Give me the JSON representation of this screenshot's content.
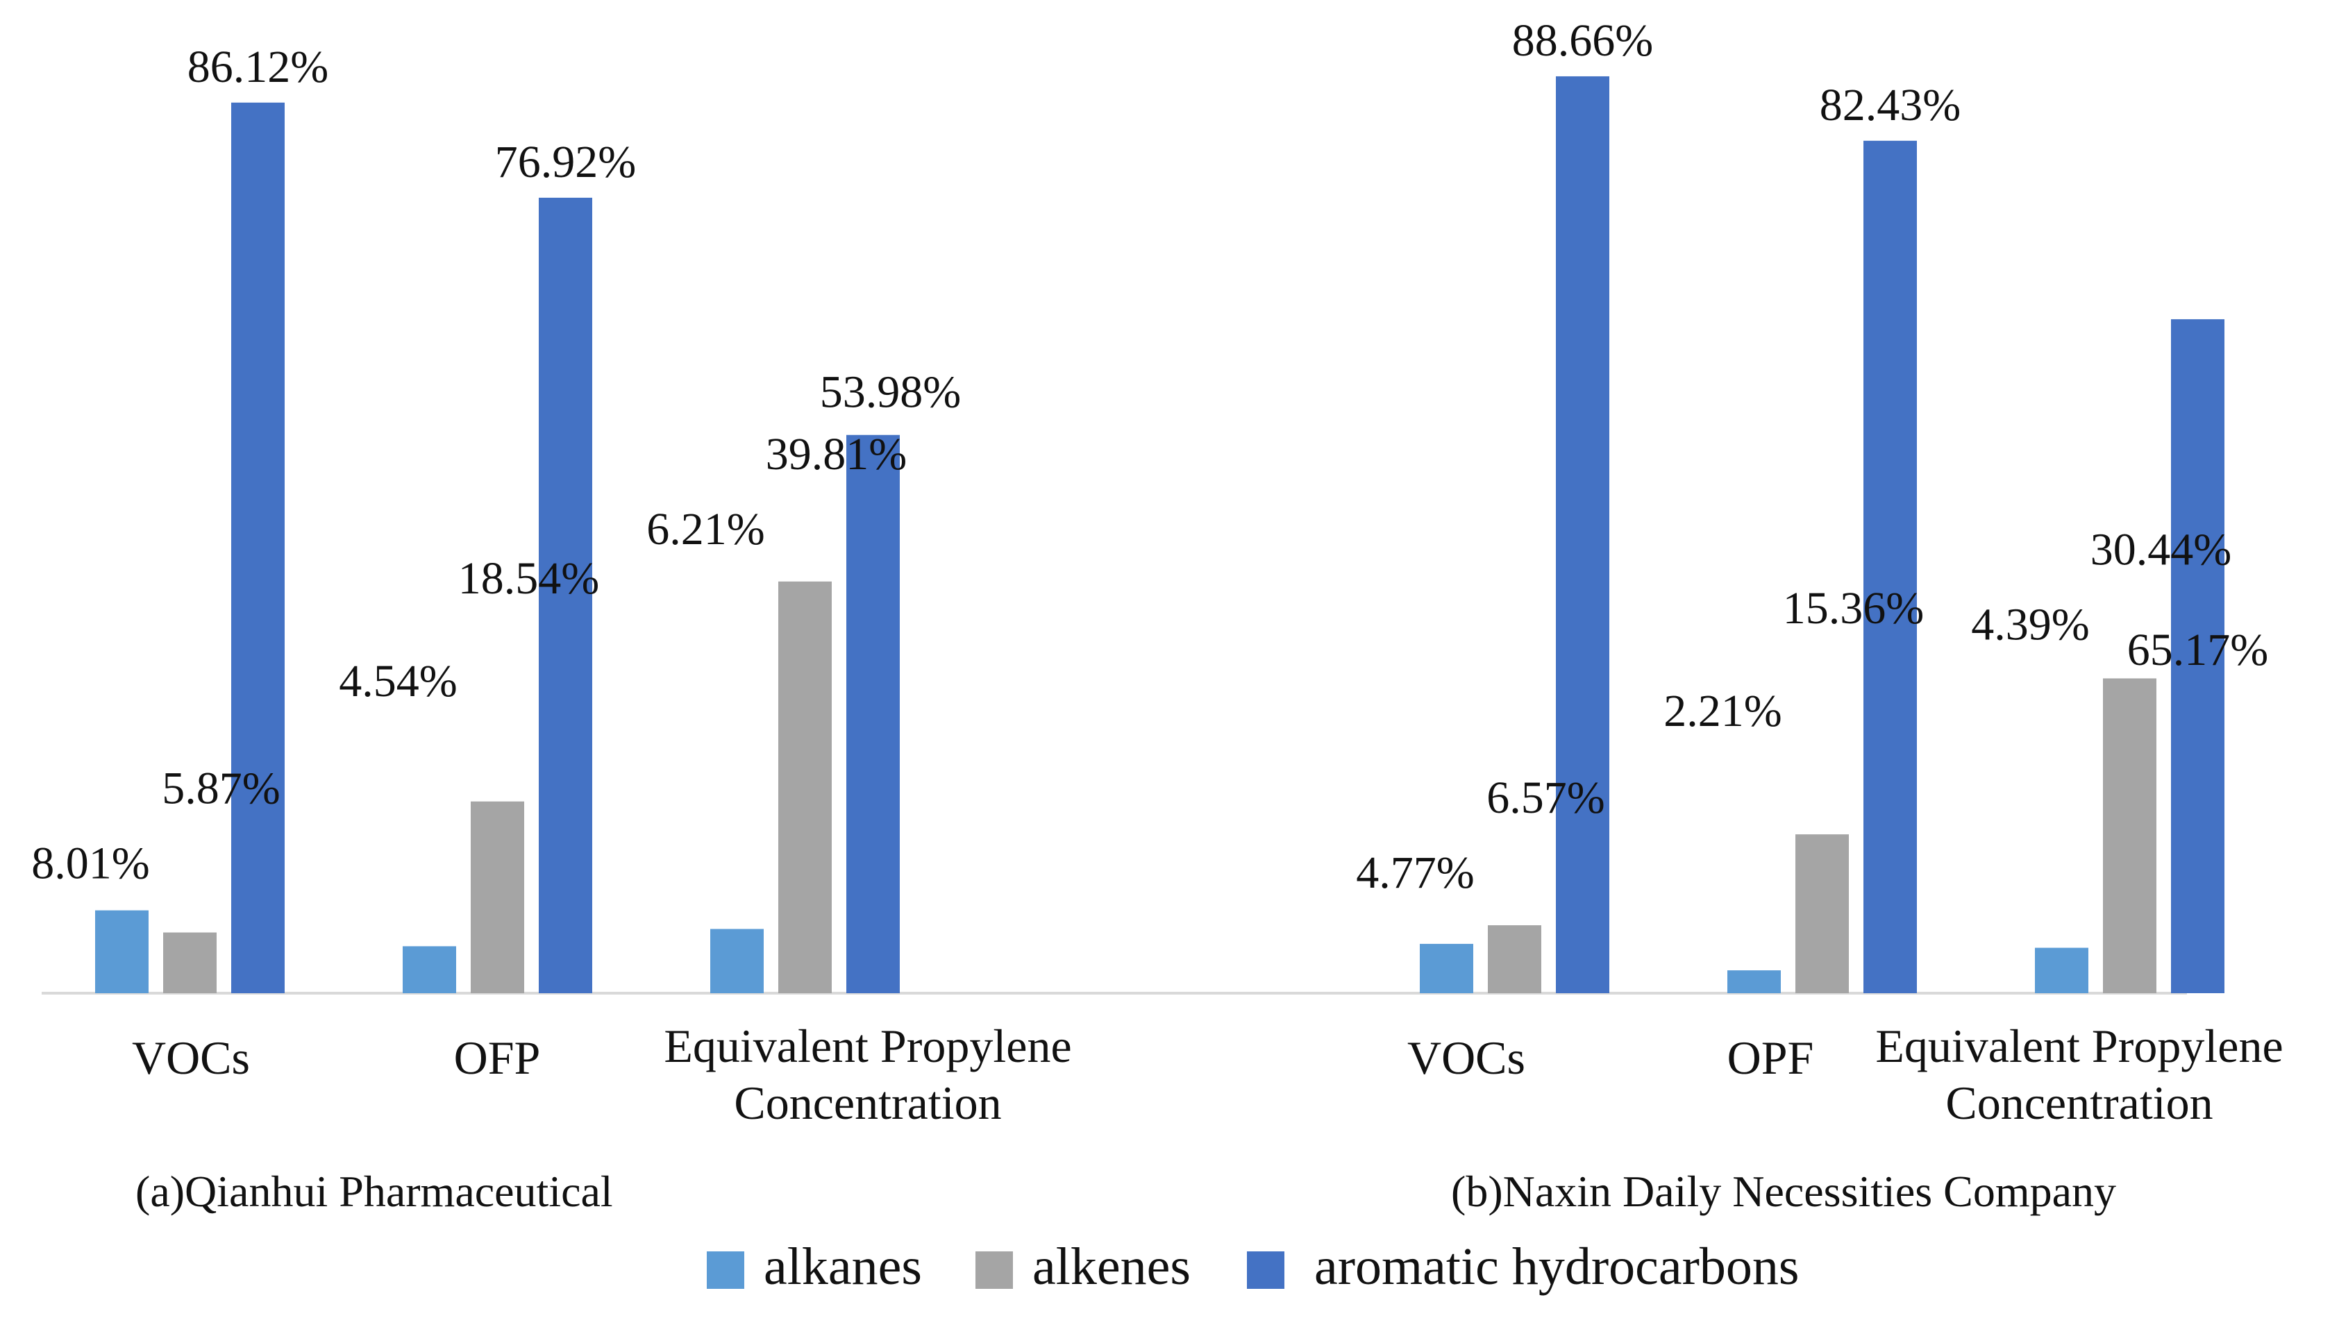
{
  "chart_data": {
    "type": "bar",
    "series": [
      {
        "name": "alkanes",
        "color": "#5b9bd5"
      },
      {
        "name": "alkenes",
        "color": "#a5a5a5"
      },
      {
        "name": "aromatic hydrocarbons",
        "color": "#4472c4"
      }
    ],
    "groups": [
      {
        "panel": "(a)Qianhui Pharmaceutical",
        "categories": [
          {
            "label": [
              "VOCs"
            ],
            "values": [
              8.01,
              5.87,
              86.12
            ],
            "labels": [
              "8.01%",
              "5.87%",
              "86.12%"
            ]
          },
          {
            "label": [
              "OFP"
            ],
            "values": [
              4.54,
              18.54,
              76.92
            ],
            "labels": [
              "4.54%",
              "18.54%",
              "76.92%"
            ]
          },
          {
            "label": [
              "Equivalent Propylene",
              "Concentration"
            ],
            "values": [
              6.21,
              39.81,
              53.98
            ],
            "labels": [
              "6.21%",
              "39.81%",
              "53.98%"
            ]
          }
        ]
      },
      {
        "panel": "(b)Naxin Daily Necessities Company",
        "categories": [
          {
            "label": [
              "VOCs"
            ],
            "values": [
              4.77,
              6.57,
              88.66
            ],
            "labels": [
              "4.77%",
              "6.57%",
              "88.66%"
            ]
          },
          {
            "label": [
              "OPF"
            ],
            "values": [
              2.21,
              15.36,
              82.43
            ],
            "labels": [
              "2.21%",
              "15.36%",
              "82.43%"
            ]
          },
          {
            "label": [
              "Equivalent Propylene",
              "Concentration"
            ],
            "values": [
              4.39,
              30.44,
              65.17
            ],
            "labels": [
              "4.39%",
              "30.44%",
              "65.17%"
            ]
          }
        ]
      }
    ],
    "legend": [
      "alkanes",
      "alkenes",
      "aromatic hydrocarbons"
    ],
    "legend_position": "bottom",
    "grid": false
  }
}
